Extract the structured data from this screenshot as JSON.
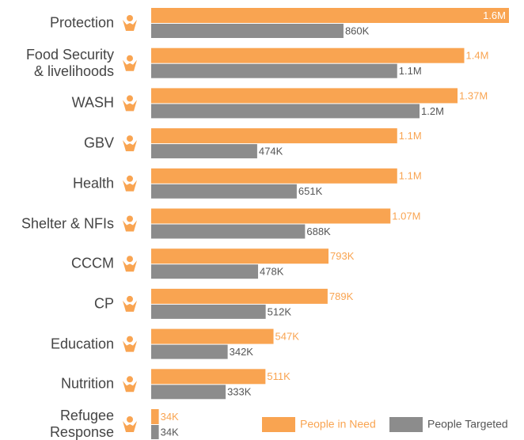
{
  "chart_data": {
    "type": "bar",
    "orientation": "horizontal",
    "categories": [
      "Protection",
      "Food Security\n& livelihoods",
      "WASH",
      "GBV",
      "Health",
      "Shelter & NFIs",
      "CCCM",
      "CP",
      "Education",
      "Nutrition",
      "Refugee\nResponse"
    ],
    "series": [
      {
        "name": "People in Need",
        "color": "#f9a451",
        "values": [
          1600000,
          1400000,
          1370000,
          1100000,
          1100000,
          1070000,
          793000,
          789000,
          547000,
          511000,
          34000
        ],
        "value_labels": [
          "1.6M",
          "1.4M",
          "1.37M",
          "1.1M",
          "1.1M",
          "1.07M",
          "793K",
          "789K",
          "547K",
          "511K",
          "34K"
        ]
      },
      {
        "name": "People Targeted",
        "color": "#8c8c8c",
        "values": [
          860000,
          1100000,
          1200000,
          474000,
          651000,
          688000,
          478000,
          512000,
          342000,
          333000,
          34000
        ],
        "value_labels": [
          "860K",
          "1.1M",
          "1.2M",
          "474K",
          "651K",
          "688K",
          "478K",
          "512K",
          "342K",
          "333K",
          "34K"
        ]
      }
    ],
    "legend": "bottom-right"
  }
}
